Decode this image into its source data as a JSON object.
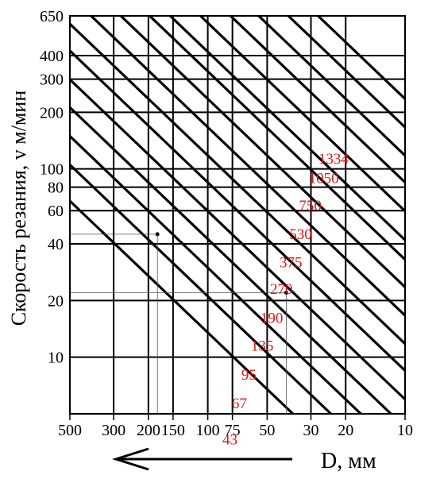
{
  "chart_data": {
    "type": "line",
    "title": "",
    "xlabel": "D, мм",
    "ylabel": "Скорость резания, v м/мин",
    "x_scale": "log",
    "y_scale": "log",
    "x_direction": "reversed",
    "xlim": [
      500,
      10
    ],
    "ylim": [
      5,
      650
    ],
    "grid": true,
    "x_ticks": [
      500,
      300,
      200,
      150,
      100,
      75,
      50,
      30,
      20,
      10
    ],
    "x_tick_labels": [
      "500",
      "300",
      "200",
      "150",
      "100",
      "75",
      "50",
      "30",
      "20",
      "10"
    ],
    "y_ticks": [
      650,
      400,
      300,
      200,
      100,
      80,
      60,
      40,
      20,
      10
    ],
    "y_tick_labels": [
      "650",
      "400",
      "300",
      "200",
      "100",
      "80",
      "60",
      "40",
      "20",
      "10"
    ],
    "series_note": "n, об/мин",
    "series": [
      {
        "label": "43"
      },
      {
        "label": "67"
      },
      {
        "label": "95"
      },
      {
        "label": "135"
      },
      {
        "label": "190"
      },
      {
        "label": "270"
      },
      {
        "label": "375"
      },
      {
        "label": "530"
      },
      {
        "label": "750"
      },
      {
        "label": "1050"
      },
      {
        "label": "1334"
      },
      {
        "label": ""
      },
      {
        "label": ""
      },
      {
        "label": ""
      },
      {
        "label": ""
      },
      {
        "label": ""
      }
    ],
    "series_values_n": [
      43,
      67,
      95,
      135,
      190,
      270,
      375,
      530,
      750,
      1050,
      1334,
      1900,
      2700,
      3750,
      5300,
      7500
    ],
    "annotations": [
      {
        "D": 180,
        "v": 45
      },
      {
        "D": 40,
        "v": 22
      }
    ],
    "arrow": {
      "direction": "left"
    },
    "colors": {
      "lines": "#000000",
      "labels": "#e01414",
      "background": "#ffffff"
    }
  }
}
